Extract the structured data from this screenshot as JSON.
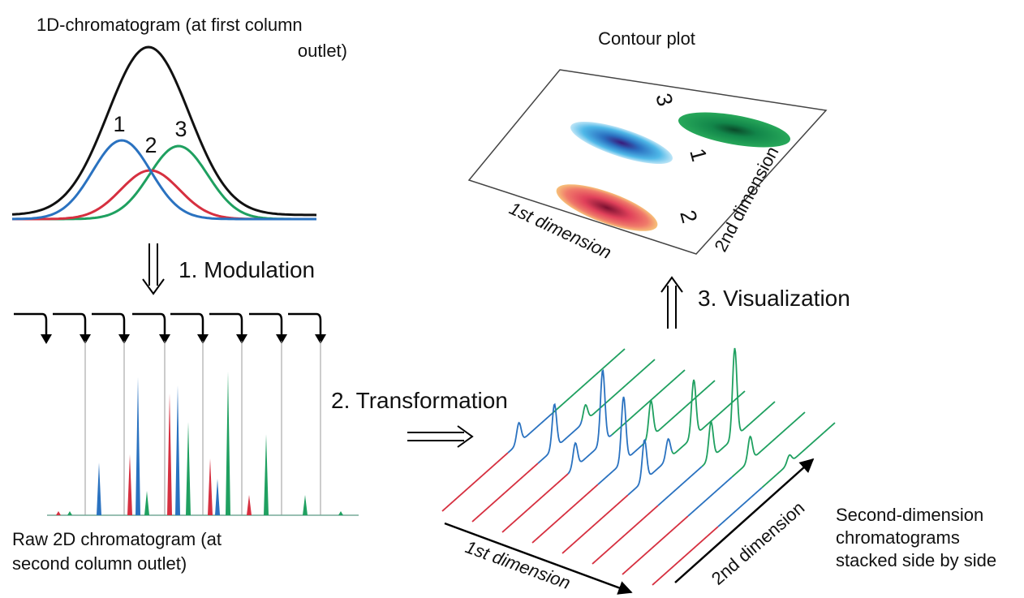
{
  "panel_1d": {
    "title_lines": [
      "1D-chromatogram (at first column",
      "outlet)"
    ],
    "peak_labels": [
      "1",
      "2",
      "3"
    ]
  },
  "step_1": "1. Modulation",
  "panel_raw": {
    "caption_lines": [
      "Raw 2D chromatogram (at",
      "second column outlet)"
    ]
  },
  "step_2": "2. Transformation",
  "panel_contour": {
    "title": "Contour plot",
    "spot_labels": [
      "3",
      "1",
      "2"
    ],
    "x_axis": "1st dimension",
    "y_axis": "2nd dimension"
  },
  "step_3": "3. Visualization",
  "panel_stack": {
    "x_axis": "1st dimension",
    "y_axis": "2nd dimension",
    "caption_lines": [
      "Second-dimension",
      "chromatograms",
      "stacked side by side"
    ]
  }
}
